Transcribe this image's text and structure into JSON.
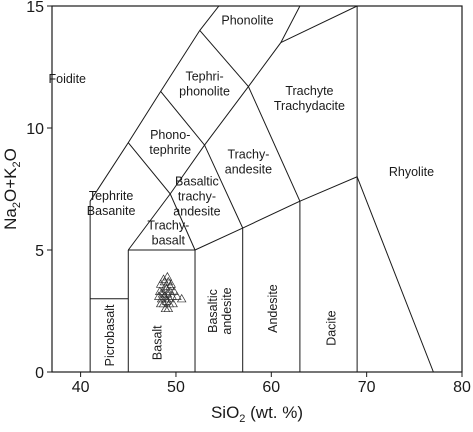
{
  "chart_data": {
    "type": "scatter",
    "title": "",
    "xlabel": {
      "main": "SiO",
      "sub": "2",
      "tail": " (wt. %)"
    },
    "ylabel": {
      "parts": [
        {
          "t": "Na",
          "sub": false
        },
        {
          "t": "2",
          "sub": true
        },
        {
          "t": "O+K",
          "sub": false
        },
        {
          "t": "2",
          "sub": true
        },
        {
          "t": "O",
          "sub": false
        }
      ]
    },
    "xlim": [
      37,
      80
    ],
    "ylim": [
      0,
      15
    ],
    "xticks": [
      40,
      50,
      60,
      70,
      80
    ],
    "yticks": [
      0,
      5,
      10,
      15
    ],
    "marker": "open-triangle",
    "field_lines": [
      [
        [
          41,
          0
        ],
        [
          41,
          7
        ],
        [
          45,
          9.4
        ],
        [
          48.4,
          11.5
        ],
        [
          52.5,
          14
        ],
        [
          54.5,
          15
        ]
      ],
      [
        [
          41,
          3
        ],
        [
          45,
          3
        ]
      ],
      [
        [
          45,
          0
        ],
        [
          45,
          5
        ]
      ],
      [
        [
          45,
          5
        ],
        [
          52,
          5
        ],
        [
          52,
          0
        ]
      ],
      [
        [
          45,
          5
        ],
        [
          49.4,
          7.3
        ],
        [
          53,
          9.3
        ],
        [
          57.6,
          11.7
        ],
        [
          61,
          13.5
        ],
        [
          63,
          15
        ]
      ],
      [
        [
          45,
          9.4
        ],
        [
          49.4,
          7.3
        ],
        [
          52,
          5
        ]
      ],
      [
        [
          48.4,
          11.5
        ],
        [
          53,
          9.3
        ],
        [
          57,
          5.9
        ],
        [
          57,
          0
        ]
      ],
      [
        [
          52,
          5
        ],
        [
          57,
          5.9
        ],
        [
          63,
          7
        ],
        [
          63,
          0
        ]
      ],
      [
        [
          52.5,
          14
        ],
        [
          57.6,
          11.7
        ]
      ],
      [
        [
          63,
          7
        ],
        [
          69,
          8
        ],
        [
          69,
          0
        ]
      ],
      [
        [
          69,
          8
        ],
        [
          77,
          0
        ]
      ],
      [
        [
          69,
          8
        ],
        [
          69,
          15
        ]
      ],
      [
        [
          61,
          13.5
        ],
        [
          69,
          15
        ]
      ],
      [
        [
          63,
          7
        ],
        [
          57.6,
          11.7
        ]
      ]
    ],
    "fields": [
      {
        "name": "Foidite",
        "lines": [
          "Foidite"
        ],
        "x": 38.6,
        "y": 12
      },
      {
        "name": "Phonolite",
        "lines": [
          "Phonolite"
        ],
        "x": 57.5,
        "y": 14.4
      },
      {
        "name": "Tephri-phonolite",
        "lines": [
          "Tephri-",
          "phonolite"
        ],
        "x": 53,
        "y": 11.8
      },
      {
        "name": "Trachyte Trachydacite",
        "lines": [
          "Trachyte",
          "Trachydacite"
        ],
        "x": 64,
        "y": 11.2
      },
      {
        "name": "Phono-tephrite",
        "lines": [
          "Phono-",
          "tephrite"
        ],
        "x": 49.4,
        "y": 9.4
      },
      {
        "name": "Trachy-andesite",
        "lines": [
          "Trachy-",
          "andesite"
        ],
        "x": 57.6,
        "y": 8.6
      },
      {
        "name": "Rhyolite",
        "lines": [
          "Rhyolite"
        ],
        "x": 74.7,
        "y": 8.2
      },
      {
        "name": "Tephrite Basanite",
        "lines": [
          "Tephrite",
          "Basanite"
        ],
        "x": 43.2,
        "y": 6.9
      },
      {
        "name": "Basaltic trachy-andesite",
        "lines": [
          "Basaltic",
          "trachy-",
          "andesite"
        ],
        "x": 52.2,
        "y": 7.2
      },
      {
        "name": "Trachy-basalt",
        "lines": [
          "Trachy-",
          "basalt"
        ],
        "x": 49.2,
        "y": 5.7
      }
    ],
    "vertical_fields": [
      {
        "name": "Picrobasalt",
        "x": 43.1,
        "y": 1.5
      },
      {
        "name": "Basaltic andesite",
        "lines": [
          "Basaltic",
          "andesite"
        ],
        "x": 54.6,
        "y": 2.5
      },
      {
        "name": "Andesite",
        "x": 60.2,
        "y": 2.6
      },
      {
        "name": "Dacite",
        "x": 66.3,
        "y": 1.8
      }
    ],
    "horizontal_fields": [
      {
        "name": "Basalt",
        "x": 48.5,
        "y": 1.2
      }
    ],
    "samples": [
      [
        48.7,
        3.8
      ],
      [
        49.1,
        3.9
      ],
      [
        48.4,
        3.6
      ],
      [
        49.5,
        3.6
      ],
      [
        48.9,
        3.5
      ],
      [
        48.3,
        3.3
      ],
      [
        48.6,
        3.3
      ],
      [
        49.0,
        3.4
      ],
      [
        49.4,
        3.3
      ],
      [
        49.8,
        3.3
      ],
      [
        48.2,
        3.1
      ],
      [
        48.5,
        3.0
      ],
      [
        48.8,
        3.1
      ],
      [
        49.1,
        3.2
      ],
      [
        49.3,
        3.0
      ],
      [
        49.6,
        3.1
      ],
      [
        50.1,
        3.1
      ],
      [
        50.6,
        3.0
      ],
      [
        48.4,
        2.8
      ],
      [
        48.7,
        2.8
      ],
      [
        49.0,
        2.9
      ],
      [
        49.3,
        2.8
      ],
      [
        49.7,
        2.8
      ],
      [
        48.9,
        2.6
      ],
      [
        49.2,
        2.6
      ],
      [
        48.6,
        3.2
      ],
      [
        49.0,
        3.0
      ],
      [
        49.4,
        3.5
      ],
      [
        48.8,
        3.7
      ],
      [
        49.2,
        3.7
      ]
    ]
  }
}
